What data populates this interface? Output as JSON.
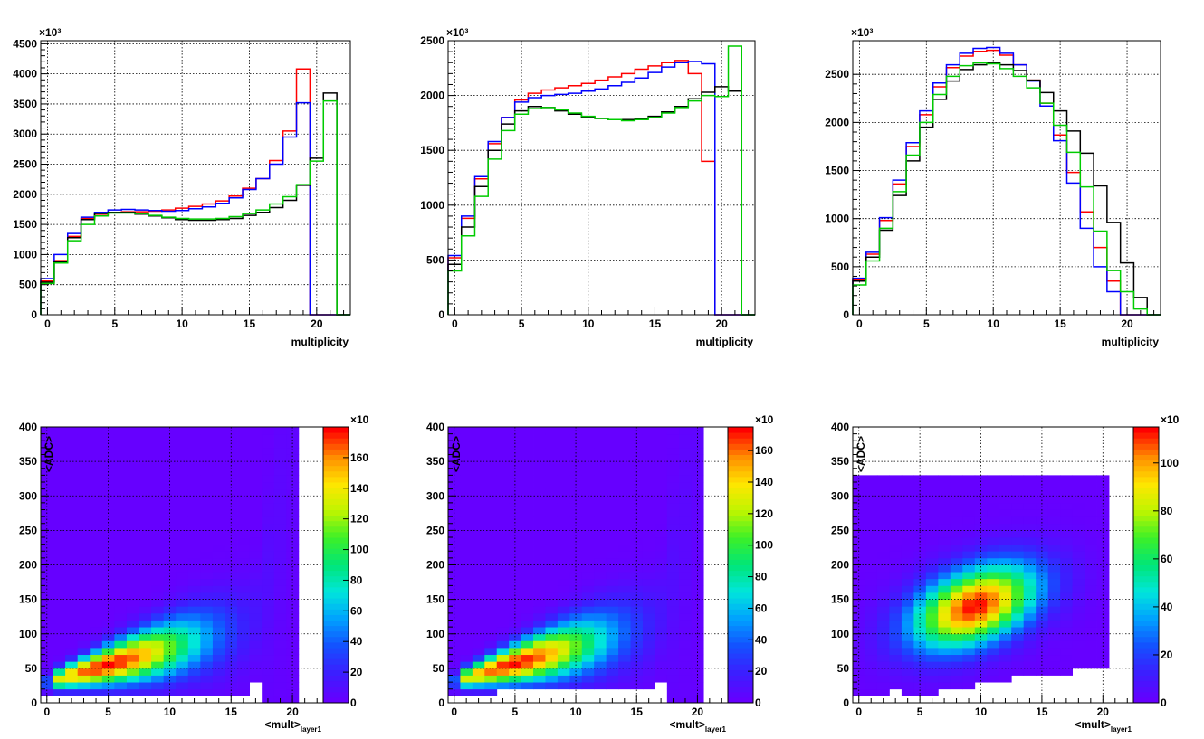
{
  "chart_data": [
    {
      "type": "step",
      "panel": "top-left",
      "xlabel": "multiplicity",
      "ylabel": "",
      "y_multiplier": "×10³",
      "xlim": [
        -0.5,
        22.5
      ],
      "ylim": [
        0,
        4550
      ],
      "x_ticks": [
        0,
        5,
        10,
        15,
        20
      ],
      "y_ticks": [
        0,
        500,
        1000,
        1500,
        2000,
        2500,
        3000,
        3500,
        4000,
        4500
      ],
      "grid": true,
      "bin_edges_start": -0.5,
      "bin_width": 1,
      "series": [
        {
          "color": "#ff0000",
          "values": [
            560,
            900,
            1300,
            1600,
            1650,
            1700,
            1710,
            1710,
            1720,
            1740,
            1770,
            1800,
            1840,
            1890,
            1970,
            2100,
            2260,
            2560,
            3050,
            4080,
            0,
            0,
            0
          ]
        },
        {
          "color": "#0000ff",
          "values": [
            600,
            1000,
            1350,
            1620,
            1700,
            1740,
            1750,
            1740,
            1730,
            1720,
            1730,
            1760,
            1790,
            1850,
            1940,
            2080,
            2260,
            2500,
            2950,
            3520,
            0,
            0,
            0
          ]
        },
        {
          "color": "#000000",
          "values": [
            540,
            880,
            1280,
            1580,
            1680,
            1700,
            1700,
            1670,
            1640,
            1610,
            1580,
            1570,
            1570,
            1580,
            1600,
            1650,
            1700,
            1780,
            1900,
            2150,
            2600,
            3680,
            0
          ]
        },
        {
          "color": "#00cc00",
          "values": [
            520,
            860,
            1230,
            1500,
            1640,
            1690,
            1690,
            1680,
            1650,
            1620,
            1600,
            1590,
            1590,
            1600,
            1630,
            1680,
            1740,
            1840,
            1960,
            2160,
            2550,
            3550,
            0
          ]
        }
      ]
    },
    {
      "type": "step",
      "panel": "top-middle",
      "xlabel": "multiplicity",
      "ylabel": "",
      "y_multiplier": "×10³",
      "xlim": [
        -0.5,
        22.5
      ],
      "ylim": [
        0,
        2500
      ],
      "x_ticks": [
        0,
        5,
        10,
        15,
        20
      ],
      "y_ticks": [
        0,
        500,
        1000,
        1500,
        2000,
        2500
      ],
      "grid": true,
      "bin_edges_start": -0.5,
      "bin_width": 1,
      "series": [
        {
          "color": "#ff0000",
          "values": [
            520,
            880,
            1240,
            1560,
            1800,
            1960,
            2020,
            2050,
            2070,
            2090,
            2110,
            2140,
            2170,
            2200,
            2240,
            2270,
            2300,
            2320,
            2200,
            1400,
            0,
            0,
            0
          ]
        },
        {
          "color": "#0000ff",
          "values": [
            540,
            900,
            1260,
            1580,
            1800,
            1940,
            1980,
            2000,
            2010,
            2020,
            2040,
            2060,
            2090,
            2120,
            2160,
            2210,
            2260,
            2300,
            2310,
            2290,
            0,
            0,
            0
          ]
        },
        {
          "color": "#000000",
          "values": [
            460,
            800,
            1170,
            1500,
            1740,
            1860,
            1900,
            1890,
            1860,
            1830,
            1800,
            1790,
            1780,
            1780,
            1790,
            1810,
            1850,
            1900,
            1970,
            2030,
            2080,
            2040,
            0
          ]
        },
        {
          "color": "#00cc00",
          "values": [
            400,
            720,
            1080,
            1420,
            1680,
            1830,
            1880,
            1890,
            1870,
            1840,
            1810,
            1790,
            1780,
            1770,
            1780,
            1800,
            1840,
            1890,
            1950,
            2000,
            1990,
            2450,
            0
          ]
        }
      ]
    },
    {
      "type": "step",
      "panel": "top-right",
      "xlabel": "multiplicity",
      "ylabel": "",
      "y_multiplier": "×10³",
      "xlim": [
        -0.5,
        22.5
      ],
      "ylim": [
        0,
        2850
      ],
      "x_ticks": [
        0,
        5,
        10,
        15,
        20
      ],
      "y_ticks": [
        0,
        500,
        1000,
        1500,
        2000,
        2500
      ],
      "grid": true,
      "bin_edges_start": -0.5,
      "bin_width": 1,
      "series": [
        {
          "color": "#ff0000",
          "values": [
            360,
            630,
            980,
            1360,
            1750,
            2080,
            2370,
            2570,
            2690,
            2740,
            2750,
            2700,
            2600,
            2440,
            2200,
            1870,
            1480,
            1070,
            700,
            350,
            0,
            0,
            0
          ]
        },
        {
          "color": "#0000ff",
          "values": [
            380,
            650,
            1010,
            1400,
            1790,
            2120,
            2410,
            2600,
            2720,
            2770,
            2780,
            2720,
            2600,
            2430,
            2170,
            1810,
            1370,
            900,
            500,
            240,
            0,
            0,
            0
          ]
        },
        {
          "color": "#000000",
          "values": [
            350,
            600,
            880,
            1240,
            1600,
            1950,
            2240,
            2430,
            2550,
            2600,
            2620,
            2600,
            2540,
            2440,
            2310,
            2120,
            1910,
            1680,
            1340,
            960,
            540,
            180,
            0
          ]
        },
        {
          "color": "#00cc00",
          "values": [
            310,
            560,
            900,
            1280,
            1660,
            2000,
            2290,
            2480,
            2590,
            2620,
            2610,
            2560,
            2480,
            2360,
            2200,
            1970,
            1690,
            1330,
            870,
            460,
            240,
            60,
            0
          ]
        }
      ]
    },
    {
      "type": "heatmap",
      "panel": "bottom-left",
      "xlabel": "<mult>",
      "xlabel_sub": "layer1",
      "ylabel": "<ADC>",
      "xlim": [
        -0.5,
        22.5
      ],
      "ylim": [
        0,
        400
      ],
      "x_ticks": [
        0,
        5,
        10,
        15,
        20
      ],
      "y_ticks": [
        0,
        50,
        100,
        150,
        200,
        250,
        300,
        350,
        400
      ],
      "z_multiplier": "×10",
      "z_ticks": [
        0,
        20,
        40,
        60,
        80,
        100,
        120,
        140,
        160
      ],
      "z_max": 180,
      "grid": true,
      "ridge_start": 30,
      "ridge_slope": 5,
      "ridge_curve": "steep-above-17",
      "peak_x": 5,
      "peak_y": 58,
      "x_bins": 21
    },
    {
      "type": "heatmap",
      "panel": "bottom-middle",
      "xlabel": "<mult>",
      "xlabel_sub": "layer1",
      "ylabel": "<ADC>",
      "xlim": [
        -0.5,
        22.5
      ],
      "ylim": [
        0,
        400
      ],
      "x_ticks": [
        0,
        5,
        10,
        15,
        20
      ],
      "y_ticks": [
        0,
        50,
        100,
        150,
        200,
        250,
        300,
        350,
        400
      ],
      "z_multiplier": "×10",
      "z_ticks": [
        0,
        20,
        40,
        60,
        80,
        100,
        120,
        140,
        160
      ],
      "z_max": 175,
      "grid": true,
      "ridge_start": 32,
      "ridge_slope": 5,
      "ridge_curve": "steep-above-17",
      "peak_x": 5,
      "peak_y": 60,
      "x_bins": 21
    },
    {
      "type": "heatmap",
      "panel": "bottom-right",
      "xlabel": "<mult>",
      "xlabel_sub": "layer1",
      "ylabel": "<ADC>",
      "xlim": [
        -0.5,
        22.5
      ],
      "ylim": [
        0,
        400
      ],
      "x_ticks": [
        0,
        5,
        10,
        15,
        20
      ],
      "y_ticks": [
        0,
        50,
        100,
        150,
        200,
        250,
        300,
        350,
        400
      ],
      "z_multiplier": "×10",
      "z_ticks": [
        0,
        20,
        40,
        60,
        80,
        100
      ],
      "z_max": 115,
      "grid": true,
      "blob_center": [
        9.5,
        140
      ],
      "blob_spread": [
        3.5,
        38
      ],
      "x_bins": 21
    }
  ]
}
